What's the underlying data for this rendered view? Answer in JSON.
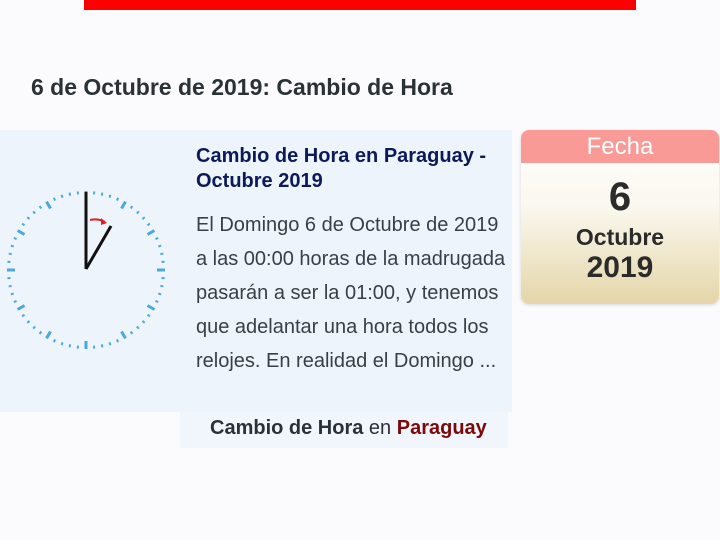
{
  "heading": "6 de Octubre de 2019: Cambio de Hora",
  "post": {
    "title": "Cambio de Hora en Paraguay - Octubre 2019",
    "excerpt": "El Domingo 6 de Octubre de 2019 a las 00:00 horas de la madrugada pasarán a ser la 01:00, y tenemos que adelantar una hora todos los relojes. En realidad el Domingo ...",
    "tag_category": "Cambio de Hora",
    "tag_joiner": "en",
    "tag_country": "Paraguay"
  },
  "calendar": {
    "header": "Fecha",
    "day": "6",
    "month": "Octubre",
    "year": "2019"
  },
  "colors": {
    "top_bar": "#ff0000",
    "calendar_header": "#f99a96",
    "tick": "#4aa8dc",
    "arrow": "#e02020"
  },
  "icons": {
    "clock": "clock-icon"
  }
}
